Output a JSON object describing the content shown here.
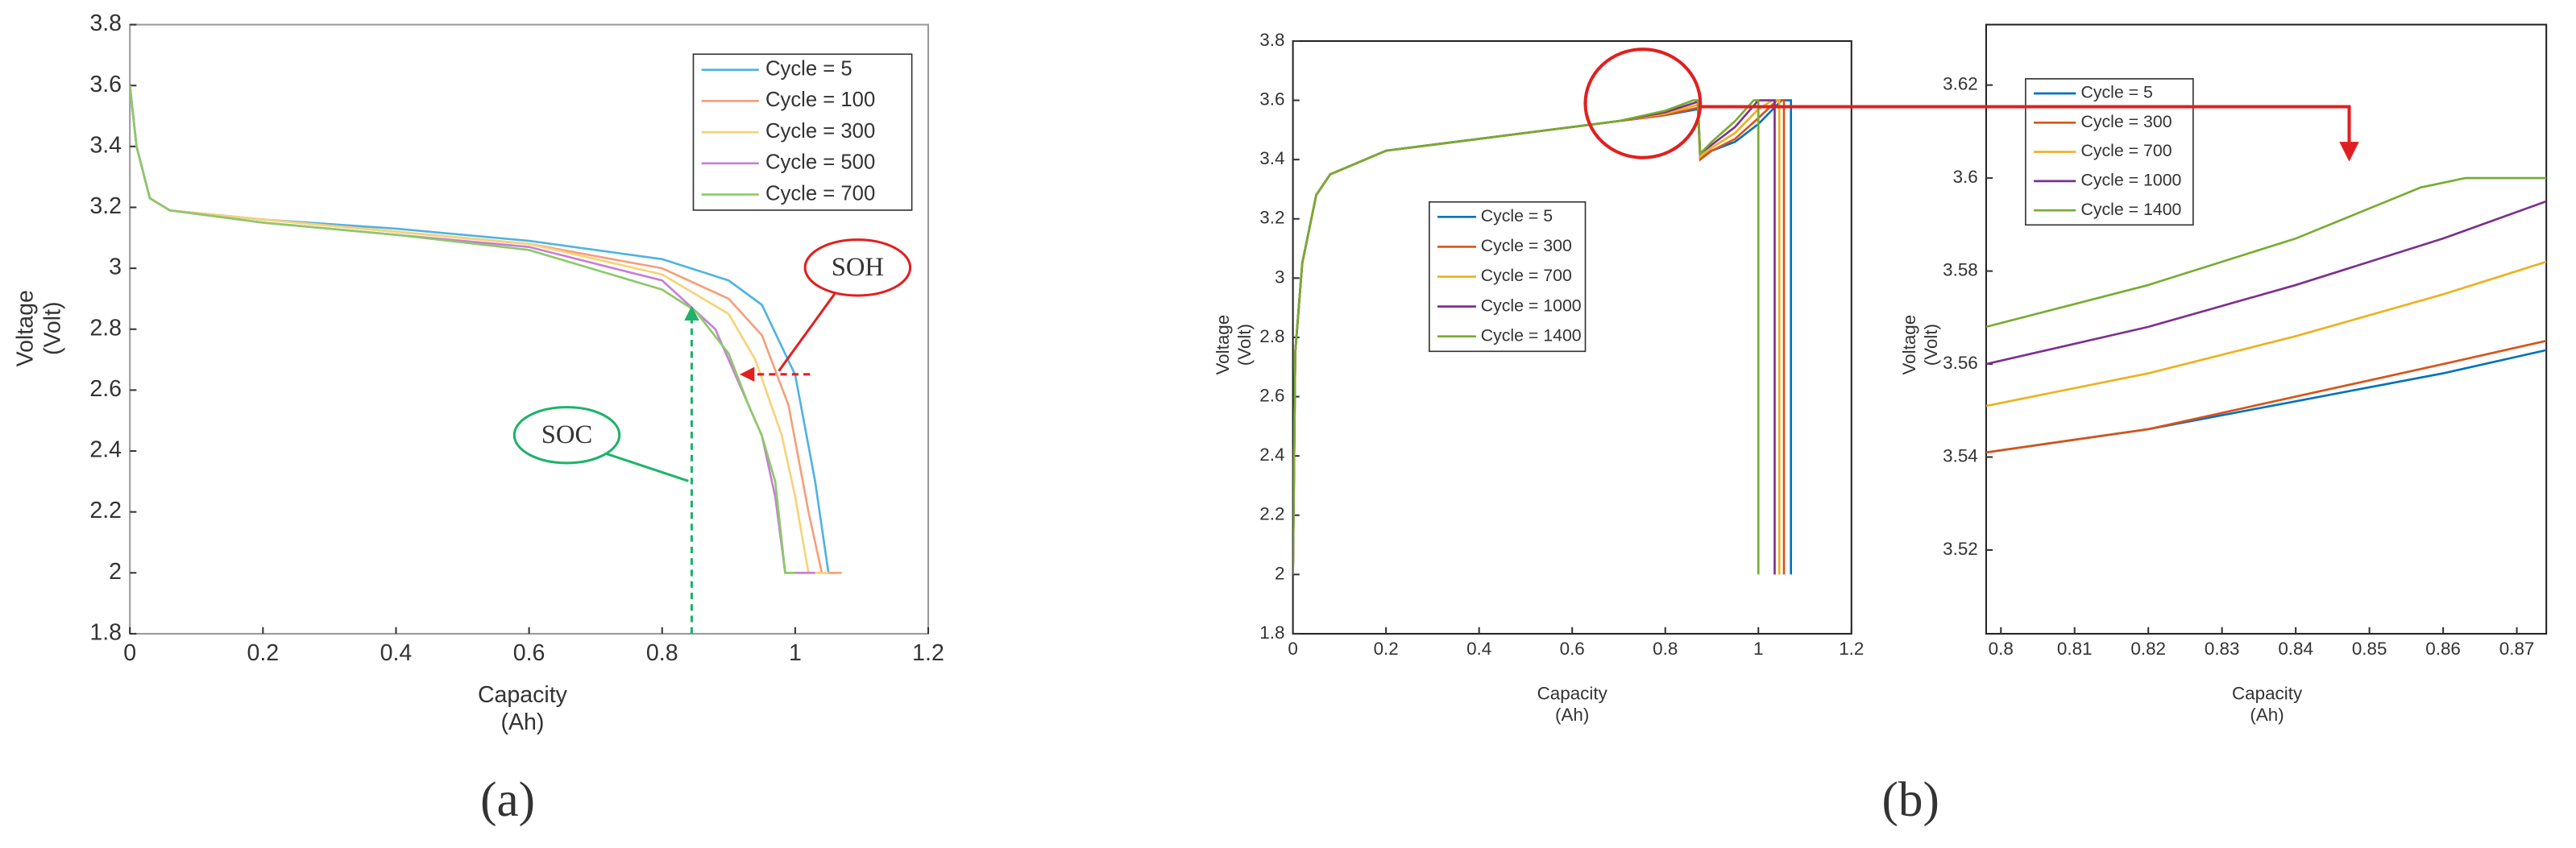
{
  "panel_labels": [
    "(a)",
    "(b)"
  ],
  "chart_data": [
    {
      "type": "line",
      "xlabel": [
        "Capacity",
        "(Ah)"
      ],
      "ylabel": [
        "Voltage",
        "(Volt)"
      ],
      "xlim": [
        0,
        1.2
      ],
      "ylim": [
        1.8,
        3.8
      ],
      "xticks": [
        0,
        0.2,
        0.4,
        0.6,
        0.8,
        1,
        1.2
      ],
      "yticks": [
        1.8,
        2,
        2.2,
        2.4,
        2.6,
        2.8,
        3,
        3.2,
        3.4,
        3.6,
        3.8
      ],
      "annotations": [
        "SOH",
        "SOC"
      ],
      "series": [
        {
          "name": "Cycle = 5",
          "color": "#4fb3e0",
          "x": [
            0,
            0.01,
            0.03,
            0.06,
            0.2,
            0.4,
            0.6,
            0.8,
            0.9,
            0.95,
            1.0,
            1.03,
            1.05,
            1.06
          ],
          "values": [
            3.6,
            3.4,
            3.23,
            3.19,
            3.16,
            3.13,
            3.09,
            3.03,
            2.96,
            2.88,
            2.65,
            2.3,
            2.0,
            2.0
          ]
        },
        {
          "name": "Cycle = 100",
          "color": "#f4a07a",
          "x": [
            0,
            0.01,
            0.03,
            0.06,
            0.2,
            0.4,
            0.6,
            0.8,
            0.9,
            0.95,
            0.99,
            1.02,
            1.04,
            1.07
          ],
          "values": [
            3.6,
            3.4,
            3.23,
            3.19,
            3.16,
            3.12,
            3.08,
            3.0,
            2.9,
            2.78,
            2.55,
            2.2,
            2.0,
            2.0
          ]
        },
        {
          "name": "Cycle = 300",
          "color": "#f7d27a",
          "x": [
            0,
            0.01,
            0.03,
            0.06,
            0.2,
            0.4,
            0.6,
            0.8,
            0.9,
            0.94,
            0.98,
            1.0,
            1.02,
            1.05
          ],
          "values": [
            3.6,
            3.4,
            3.23,
            3.19,
            3.16,
            3.12,
            3.08,
            2.98,
            2.85,
            2.7,
            2.45,
            2.25,
            2.0,
            2.0
          ]
        },
        {
          "name": "Cycle = 500",
          "color": "#c77fd4",
          "x": [
            0,
            0.01,
            0.03,
            0.06,
            0.2,
            0.4,
            0.6,
            0.8,
            0.88,
            0.92,
            0.95,
            0.97,
            0.985,
            1.03
          ],
          "values": [
            3.6,
            3.4,
            3.23,
            3.19,
            3.15,
            3.11,
            3.07,
            2.96,
            2.8,
            2.6,
            2.45,
            2.25,
            2.0,
            2.0
          ]
        },
        {
          "name": "Cycle = 700",
          "color": "#8cc96a",
          "x": [
            0,
            0.01,
            0.03,
            0.06,
            0.2,
            0.4,
            0.6,
            0.8,
            0.85,
            0.9,
            0.93,
            0.95,
            0.97,
            0.985,
            1.0
          ],
          "values": [
            3.6,
            3.4,
            3.23,
            3.19,
            3.15,
            3.11,
            3.06,
            2.93,
            2.86,
            2.72,
            2.55,
            2.45,
            2.3,
            2.0,
            2.0
          ]
        }
      ]
    },
    {
      "type": "line",
      "xlabel": [
        "Capacity",
        "(Ah)"
      ],
      "ylabel": [
        "Voltage",
        "(Volt)"
      ],
      "xlim": [
        0,
        1.2
      ],
      "ylim": [
        1.8,
        3.8
      ],
      "xticks": [
        0,
        0.2,
        0.4,
        0.6,
        0.8,
        1,
        1.2
      ],
      "yticks": [
        1.8,
        2,
        2.2,
        2.4,
        2.6,
        2.8,
        3,
        3.2,
        3.4,
        3.6,
        3.8
      ],
      "series": [
        {
          "name": "Cycle = 5",
          "color": "#0072bd",
          "x": [
            0,
            0.005,
            0.02,
            0.05,
            0.08,
            0.2,
            0.4,
            0.6,
            0.7,
            0.8,
            0.87,
            0.875,
            0.9,
            0.95,
            1.0,
            1.05,
            1.07,
            1.07
          ],
          "values": [
            2.0,
            2.75,
            3.05,
            3.28,
            3.35,
            3.43,
            3.47,
            3.51,
            3.53,
            3.55,
            3.57,
            3.41,
            3.43,
            3.46,
            3.52,
            3.6,
            3.6,
            2.0
          ]
        },
        {
          "name": "Cycle = 300",
          "color": "#d95319",
          "x": [
            0,
            0.005,
            0.02,
            0.05,
            0.08,
            0.2,
            0.4,
            0.6,
            0.7,
            0.8,
            0.87,
            0.875,
            0.9,
            0.95,
            1.0,
            1.04,
            1.055,
            1.055
          ],
          "values": [
            2.0,
            2.75,
            3.05,
            3.28,
            3.35,
            3.43,
            3.47,
            3.51,
            3.53,
            3.55,
            3.575,
            3.4,
            3.43,
            3.47,
            3.54,
            3.6,
            3.6,
            2.0
          ]
        },
        {
          "name": "Cycle = 700",
          "color": "#edb120",
          "x": [
            0,
            0.005,
            0.02,
            0.05,
            0.08,
            0.2,
            0.4,
            0.6,
            0.7,
            0.8,
            0.87,
            0.875,
            0.9,
            0.95,
            1.0,
            1.03,
            1.045,
            1.045
          ],
          "values": [
            2.0,
            2.75,
            3.05,
            3.28,
            3.35,
            3.43,
            3.47,
            3.51,
            3.53,
            3.555,
            3.585,
            3.41,
            3.44,
            3.49,
            3.57,
            3.6,
            3.6,
            2.0
          ]
        },
        {
          "name": "Cycle = 1000",
          "color": "#7e2f8e",
          "x": [
            0,
            0.005,
            0.02,
            0.05,
            0.08,
            0.2,
            0.4,
            0.6,
            0.7,
            0.8,
            0.87,
            0.875,
            0.9,
            0.95,
            1.0,
            1.035,
            1.035
          ],
          "values": [
            2.0,
            2.75,
            3.05,
            3.28,
            3.35,
            3.43,
            3.47,
            3.51,
            3.53,
            3.56,
            3.595,
            3.42,
            3.45,
            3.51,
            3.6,
            3.6,
            2.0
          ]
        },
        {
          "name": "Cycle = 1400",
          "color": "#77ac30",
          "x": [
            0,
            0.005,
            0.02,
            0.05,
            0.08,
            0.2,
            0.4,
            0.6,
            0.7,
            0.8,
            0.86,
            0.87,
            0.875,
            0.9,
            0.95,
            0.99,
            1.0,
            1.0
          ],
          "values": [
            2.0,
            2.75,
            3.05,
            3.28,
            3.35,
            3.43,
            3.47,
            3.51,
            3.53,
            3.565,
            3.6,
            3.6,
            3.42,
            3.46,
            3.53,
            3.6,
            3.6,
            2.0
          ]
        }
      ]
    },
    {
      "type": "line",
      "xlabel": [
        "Capacity",
        "(Ah)"
      ],
      "ylabel": [
        "Voltage",
        "(Volt)"
      ],
      "xlim": [
        0.798,
        0.874
      ],
      "ylim": [
        3.502,
        3.633
      ],
      "xticks": [
        0.8,
        0.81,
        0.82,
        0.83,
        0.84,
        0.85,
        0.86,
        0.87
      ],
      "yticks": [
        3.52,
        3.54,
        3.56,
        3.58,
        3.6,
        3.62
      ],
      "series": [
        {
          "name": "Cycle = 5",
          "color": "#0072bd",
          "x": [
            0.798,
            0.82,
            0.84,
            0.86,
            0.874
          ],
          "values": [
            3.541,
            3.546,
            3.552,
            3.558,
            3.563
          ]
        },
        {
          "name": "Cycle = 300",
          "color": "#d95319",
          "x": [
            0.798,
            0.82,
            0.84,
            0.86,
            0.874
          ],
          "values": [
            3.541,
            3.546,
            3.553,
            3.56,
            3.565
          ]
        },
        {
          "name": "Cycle = 700",
          "color": "#edb120",
          "x": [
            0.798,
            0.82,
            0.84,
            0.86,
            0.874
          ],
          "values": [
            3.551,
            3.558,
            3.566,
            3.575,
            3.582
          ]
        },
        {
          "name": "Cycle = 1000",
          "color": "#7e2f8e",
          "x": [
            0.798,
            0.82,
            0.84,
            0.86,
            0.874
          ],
          "values": [
            3.56,
            3.568,
            3.577,
            3.587,
            3.595
          ]
        },
        {
          "name": "Cycle = 1400",
          "color": "#77ac30",
          "x": [
            0.798,
            0.82,
            0.84,
            0.857,
            0.863,
            0.874
          ],
          "values": [
            3.568,
            3.577,
            3.587,
            3.598,
            3.6,
            3.6
          ]
        }
      ]
    }
  ]
}
